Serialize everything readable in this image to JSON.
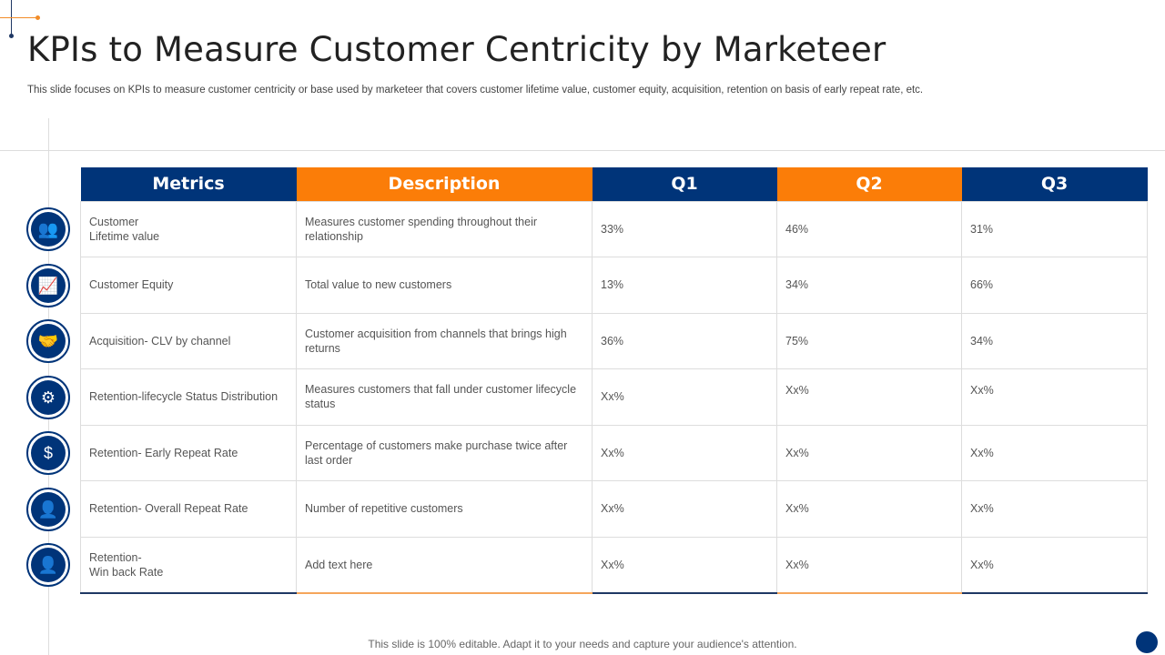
{
  "title": "KPIs to Measure Customer Centricity by Marketeer",
  "subtitle": "This slide focuses on KPIs to measure customer centricity or base used by marketeer that covers customer lifetime value, customer equity, acquisition, retention on basis of early repeat rate, etc.",
  "table": {
    "headers": [
      "Metrics",
      "Description",
      "Q1",
      "Q2",
      "Q3"
    ],
    "rows": [
      {
        "icon": "customers-dollar-icon",
        "glyph": "👥",
        "metric": "Customer\nLifetime value",
        "description": "Measures customer spending throughout their relationship",
        "q1": "33%",
        "q2": "46%",
        "q3": "31%"
      },
      {
        "icon": "growth-chart-icon",
        "glyph": "📈",
        "metric": "Customer Equity",
        "description": "Total value to new customers",
        "q1": "13%",
        "q2": "34%",
        "q3": "66%"
      },
      {
        "icon": "handshake-icon",
        "glyph": "🤝",
        "metric": "Acquisition- CLV by channel",
        "description": "Customer acquisition from channels that brings high returns",
        "q1": "36%",
        "q2": "75%",
        "q3": "34%"
      },
      {
        "icon": "lifecycle-gear-icon",
        "glyph": "⚙",
        "metric": "Retention-lifecycle Status Distribution",
        "description": "Measures customers that fall under customer lifecycle status",
        "q1": "Xx%",
        "q2": "Xx%",
        "q3": "Xx%"
      },
      {
        "icon": "dollar-cycle-icon",
        "glyph": "$",
        "metric": "Retention- Early Repeat Rate",
        "description": "Percentage of customers make purchase twice after last order",
        "q1": "Xx%",
        "q2": "Xx%",
        "q3": "Xx%"
      },
      {
        "icon": "repeat-customer-icon",
        "glyph": "👤",
        "metric": "Retention- Overall Repeat Rate",
        "description": "Number of repetitive customers",
        "q1": "Xx%",
        "q2": "Xx%",
        "q3": "Xx%"
      },
      {
        "icon": "user-return-icon",
        "glyph": "👤",
        "metric": "Retention-\nWin back Rate",
        "description": "Add text here",
        "q1": "Xx%",
        "q2": "Xx%",
        "q3": "Xx%"
      }
    ]
  },
  "footer": "This slide is 100% editable. Adapt it to your needs and capture your audience's attention.",
  "colors": {
    "navy": "#003479",
    "orange": "#fb7d08"
  }
}
